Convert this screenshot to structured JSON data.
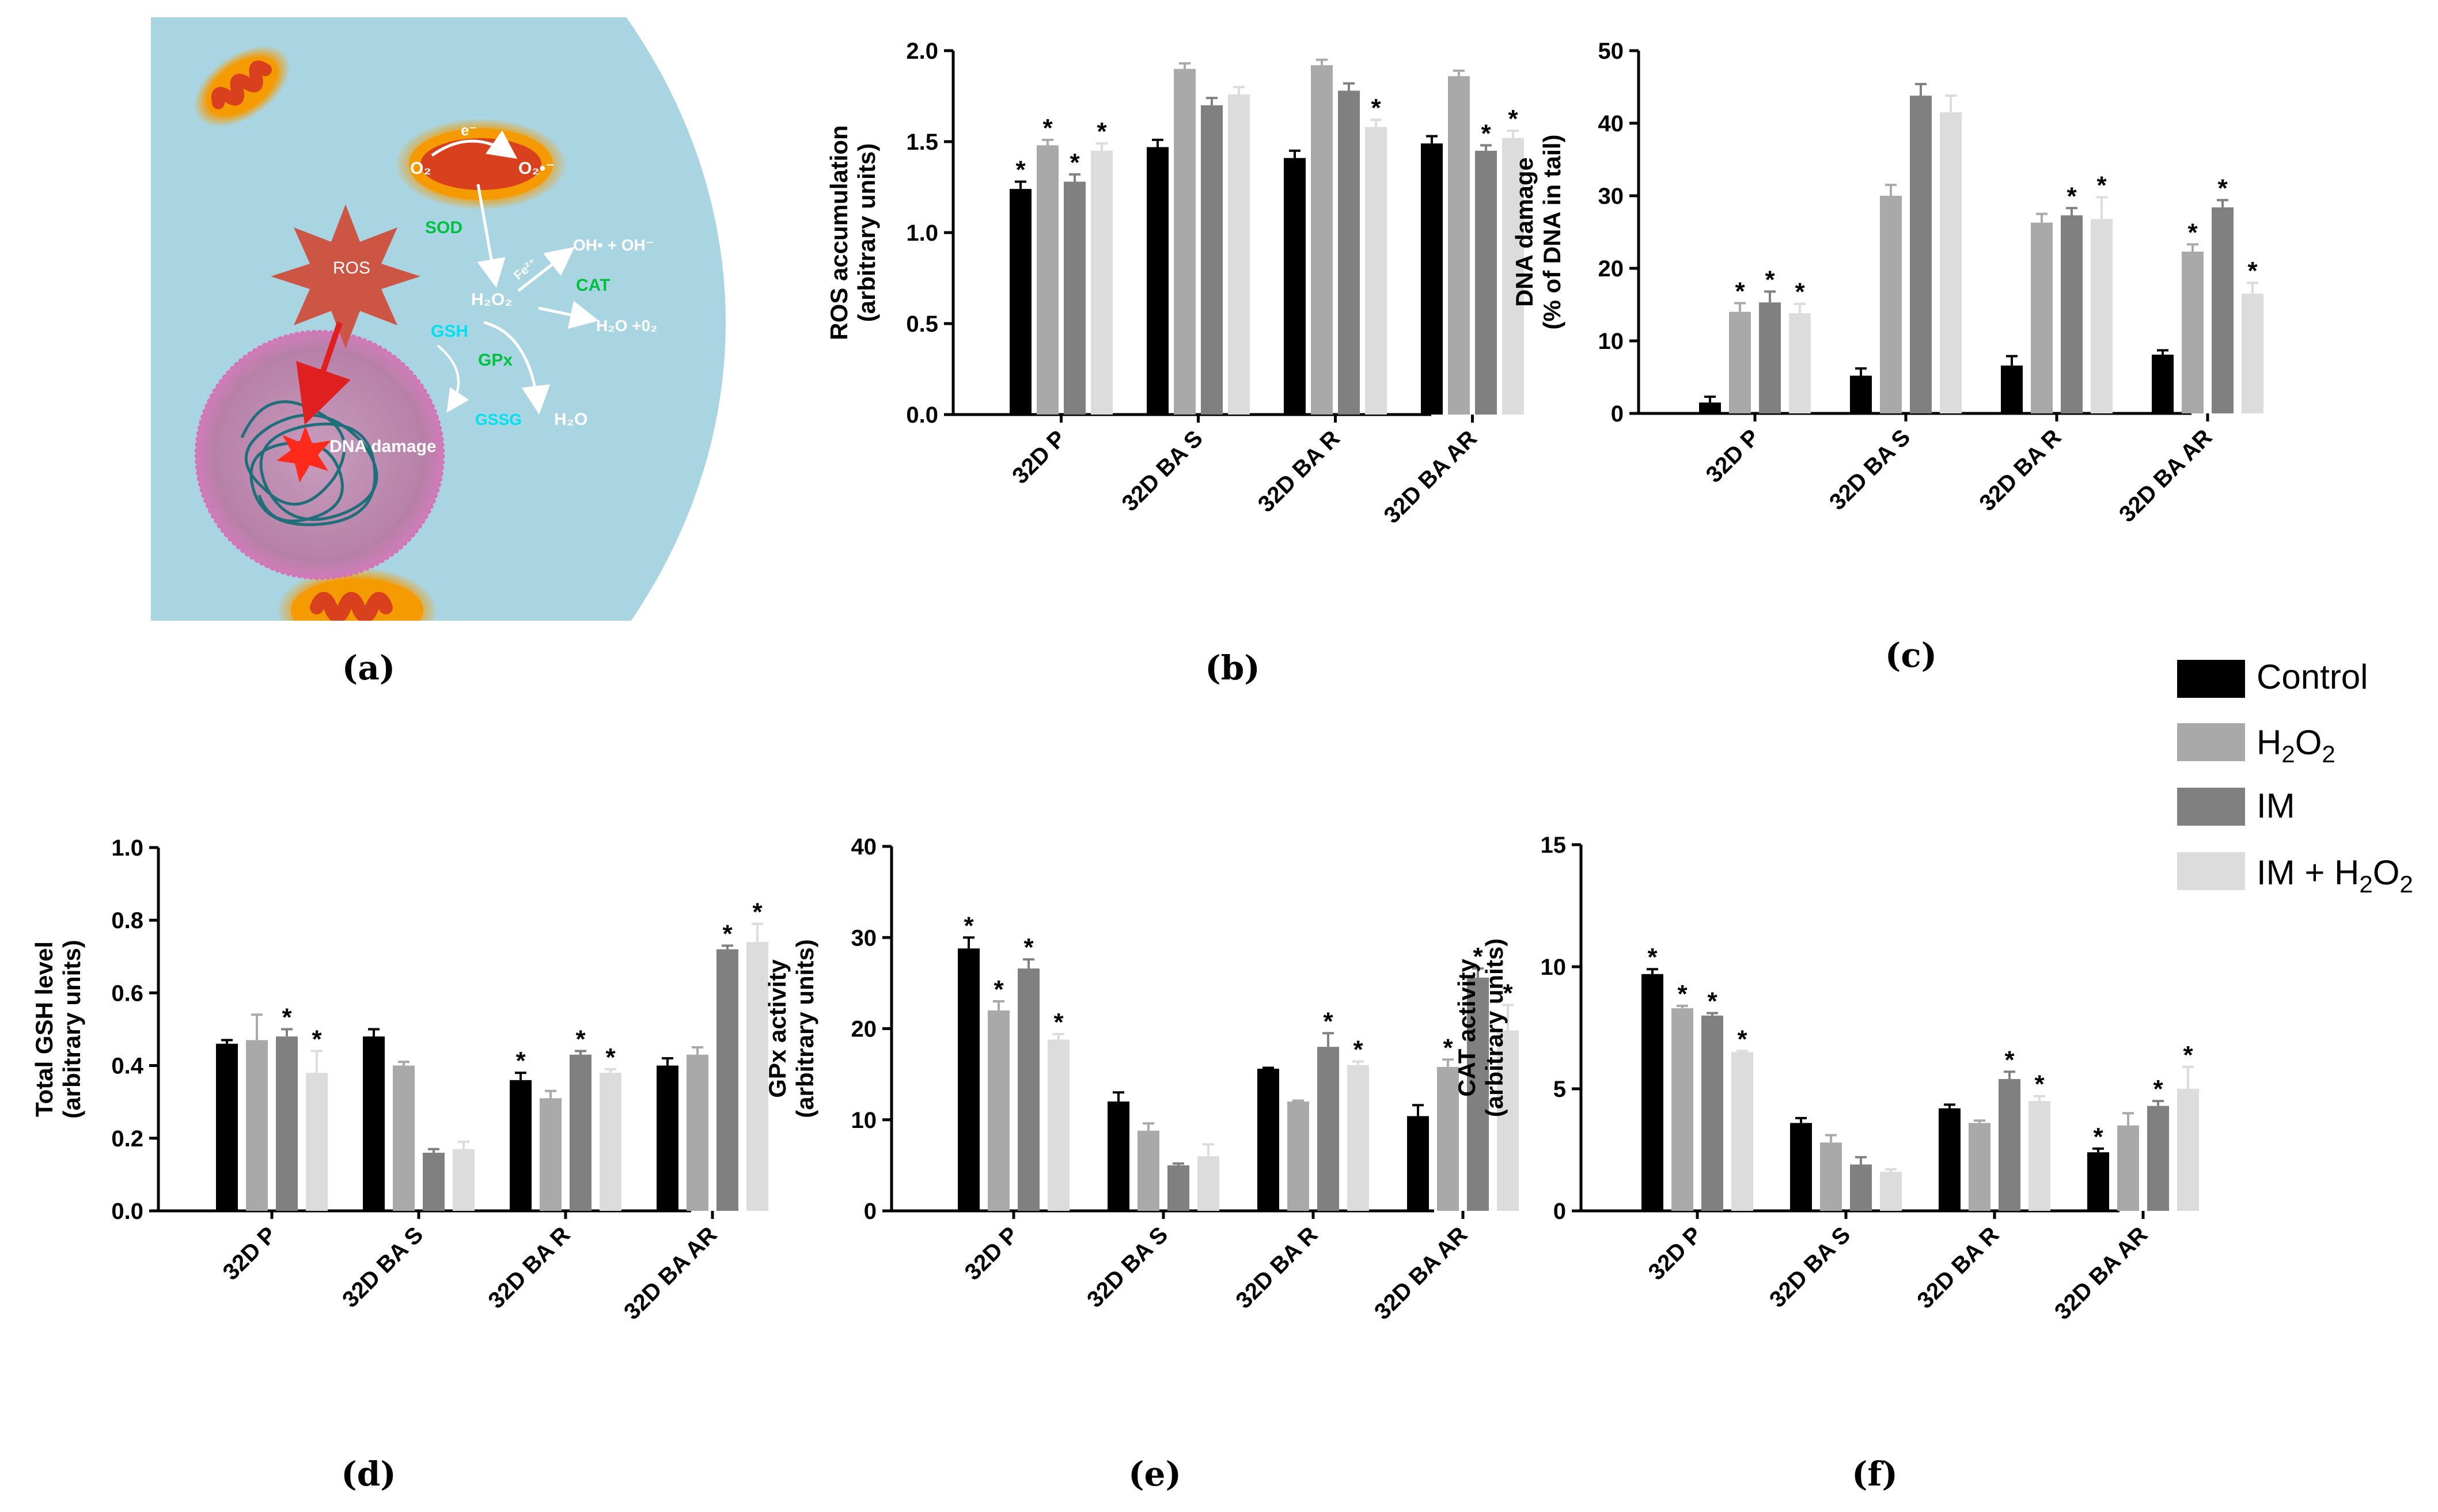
{
  "figure": {
    "panel_labels": [
      "(a)",
      "(b)",
      "(c)",
      "(d)",
      "(e)",
      "(f)"
    ],
    "colors": {
      "control": "#000000",
      "h2o2": "#a9a9a9",
      "im": "#808080",
      "im_h2o2": "#dcdcdc",
      "cell_bg": "#a9d5e2",
      "nucleus": "#c08bb0",
      "ros": "#cc5544",
      "mito_outer": "#f5a000",
      "mito_inner": "#d9411e",
      "dna": "#1f6f7a",
      "green_text": "#00c040",
      "cyan_text": "#00e0f0"
    }
  },
  "diagram": {
    "ros_label": "ROS",
    "dna_damage_label": "DNA damage",
    "electron_label": "e⁻",
    "o2_label": "O₂",
    "superoxide_label": "O₂•⁻",
    "sod_label": "SOD",
    "fe_label": "Fe²⁺",
    "hydroxyl_label": "OH• + OH⁻",
    "h2o2_label": "H₂O₂",
    "cat_label": "CAT",
    "cat_product_label": "H₂O +0₂",
    "gsh_label": "GSH",
    "gpx_label": "GPx",
    "gssg_label": "GSSG",
    "h2o_label": "H₂O"
  },
  "legend": {
    "entries": [
      "Control",
      "H2O2",
      "IM",
      "IM + H2O2"
    ],
    "entries_display": {
      "control": "Control",
      "h2o2_base": "H",
      "h2o2_sub1": "2",
      "h2o2_mid": "O",
      "h2o2_sub2": "2",
      "im": "IM",
      "imh2o2_base": "IM + H",
      "imh2o2_sub1": "2",
      "imh2o2_mid": "O",
      "imh2o2_sub2": "2"
    }
  },
  "chart_data": [
    {
      "panel": "(b)",
      "type": "bar",
      "ylabel": "ROS accumulation",
      "ylabel2": "(arbitrary units)",
      "ylim": [
        0,
        2.0
      ],
      "yticks": [
        "0.0",
        "0.5",
        "1.0",
        "1.5",
        "2.0"
      ],
      "ytick_values": [
        0,
        0.5,
        1.0,
        1.5,
        2.0
      ],
      "categories": [
        "32D P",
        "32D BA S",
        "32D BA R",
        "32D BA AR"
      ],
      "series": [
        {
          "name": "Control",
          "values": [
            1.24,
            1.47,
            1.41,
            1.49
          ],
          "errors": [
            0.04,
            0.04,
            0.04,
            0.04
          ],
          "sig": [
            true,
            false,
            false,
            false
          ]
        },
        {
          "name": "H2O2",
          "values": [
            1.48,
            1.9,
            1.92,
            1.86
          ],
          "errors": [
            0.03,
            0.03,
            0.03,
            0.03
          ],
          "sig": [
            true,
            false,
            false,
            false
          ]
        },
        {
          "name": "IM",
          "values": [
            1.28,
            1.7,
            1.78,
            1.45
          ],
          "errors": [
            0.04,
            0.04,
            0.04,
            0.03
          ],
          "sig": [
            true,
            false,
            false,
            true
          ]
        },
        {
          "name": "IM + H2O2",
          "values": [
            1.45,
            1.76,
            1.58,
            1.52
          ],
          "errors": [
            0.04,
            0.04,
            0.04,
            0.04
          ],
          "sig": [
            true,
            false,
            true,
            true
          ]
        }
      ]
    },
    {
      "panel": "(c)",
      "type": "bar",
      "ylabel": "DNA damage",
      "ylabel2": "(% of DNA in tail)",
      "ylim": [
        0,
        50
      ],
      "yticks": [
        "0",
        "10",
        "20",
        "30",
        "40",
        "50"
      ],
      "ytick_values": [
        0,
        10,
        20,
        30,
        40,
        50
      ],
      "categories": [
        "32D P",
        "32D BA S",
        "32D BA R",
        "32D BA AR"
      ],
      "series": [
        {
          "name": "Control",
          "values": [
            1.5,
            5.2,
            6.6,
            8.1
          ],
          "errors": [
            0.8,
            1.0,
            1.3,
            0.6
          ],
          "sig": [
            false,
            false,
            false,
            false
          ]
        },
        {
          "name": "H2O2",
          "values": [
            14.0,
            30.0,
            26.3,
            22.3
          ],
          "errors": [
            1.2,
            1.5,
            1.2,
            1.0
          ],
          "sig": [
            true,
            false,
            false,
            true
          ]
        },
        {
          "name": "IM",
          "values": [
            15.3,
            43.8,
            27.3,
            28.4
          ],
          "errors": [
            1.5,
            1.6,
            1.0,
            1.0
          ],
          "sig": [
            true,
            false,
            true,
            true
          ]
        },
        {
          "name": "IM + H2O2",
          "values": [
            13.8,
            41.5,
            26.8,
            16.5
          ],
          "errors": [
            1.3,
            2.3,
            3.0,
            1.5
          ],
          "sig": [
            true,
            false,
            true,
            true
          ]
        }
      ]
    },
    {
      "panel": "(d)",
      "type": "bar",
      "ylabel": "Total GSH level",
      "ylabel2": "(arbitrary units)",
      "ylim": [
        0,
        1.0
      ],
      "yticks": [
        "0.0",
        "0.2",
        "0.4",
        "0.6",
        "0.8",
        "1.0"
      ],
      "ytick_values": [
        0,
        0.2,
        0.4,
        0.6,
        0.8,
        1.0
      ],
      "categories": [
        "32D P",
        "32D BA S",
        "32D BA R",
        "32D BA AR"
      ],
      "series": [
        {
          "name": "Control",
          "values": [
            0.46,
            0.48,
            0.36,
            0.4
          ],
          "errors": [
            0.01,
            0.02,
            0.02,
            0.02
          ],
          "sig": [
            false,
            false,
            true,
            false
          ]
        },
        {
          "name": "H2O2",
          "values": [
            0.47,
            0.4,
            0.31,
            0.43
          ],
          "errors": [
            0.07,
            0.01,
            0.02,
            0.02
          ],
          "sig": [
            false,
            false,
            false,
            false
          ]
        },
        {
          "name": "IM",
          "values": [
            0.48,
            0.16,
            0.43,
            0.72
          ],
          "errors": [
            0.02,
            0.01,
            0.01,
            0.01
          ],
          "sig": [
            true,
            false,
            true,
            true
          ]
        },
        {
          "name": "IM + H2O2",
          "values": [
            0.38,
            0.17,
            0.38,
            0.74
          ],
          "errors": [
            0.06,
            0.02,
            0.01,
            0.05
          ],
          "sig": [
            true,
            false,
            true,
            true
          ]
        }
      ]
    },
    {
      "panel": "(e)",
      "type": "bar",
      "ylabel": "GPx activity",
      "ylabel2": "(arbitrary units)",
      "ylim": [
        0,
        40
      ],
      "yticks": [
        "0",
        "10",
        "20",
        "30",
        "40"
      ],
      "ytick_values": [
        0,
        10,
        20,
        30,
        40
      ],
      "categories": [
        "32D P",
        "32D BA S",
        "32D BA R",
        "32D BA AR"
      ],
      "series": [
        {
          "name": "Control",
          "values": [
            28.8,
            12.0,
            15.6,
            10.4
          ],
          "errors": [
            1.2,
            1.0,
            0.1,
            1.2
          ],
          "sig": [
            true,
            false,
            false,
            false
          ]
        },
        {
          "name": "H2O2",
          "values": [
            22.0,
            8.8,
            12.0,
            15.8
          ],
          "errors": [
            1.0,
            0.8,
            0.1,
            0.8
          ],
          "sig": [
            true,
            false,
            false,
            true
          ]
        },
        {
          "name": "IM",
          "values": [
            26.6,
            5.0,
            18.0,
            25.6
          ],
          "errors": [
            1.0,
            0.2,
            1.5,
            1.0
          ],
          "sig": [
            true,
            false,
            true,
            true
          ]
        },
        {
          "name": "IM + H2O2",
          "values": [
            18.8,
            6.0,
            16.0,
            19.8
          ],
          "errors": [
            0.6,
            1.3,
            0.4,
            2.8
          ],
          "sig": [
            true,
            false,
            true,
            true
          ]
        }
      ]
    },
    {
      "panel": "(f)",
      "type": "bar",
      "ylabel": "CAT activity",
      "ylabel2": "(arbitrary units)",
      "ylim": [
        0,
        15
      ],
      "yticks": [
        "0",
        "5",
        "10",
        "15"
      ],
      "ytick_values": [
        0,
        5,
        10,
        15
      ],
      "categories": [
        "32D P",
        "32D BA S",
        "32D BA R",
        "32D BA AR"
      ],
      "series": [
        {
          "name": "Control",
          "values": [
            9.7,
            3.6,
            4.2,
            2.4
          ],
          "errors": [
            0.2,
            0.2,
            0.15,
            0.15
          ],
          "sig": [
            true,
            false,
            false,
            true
          ]
        },
        {
          "name": "H2O2",
          "values": [
            8.3,
            2.8,
            3.6,
            3.5
          ],
          "errors": [
            0.1,
            0.3,
            0.1,
            0.5
          ],
          "sig": [
            true,
            false,
            false,
            false
          ]
        },
        {
          "name": "IM",
          "values": [
            8.0,
            1.9,
            5.4,
            4.3
          ],
          "errors": [
            0.1,
            0.3,
            0.3,
            0.2
          ],
          "sig": [
            true,
            false,
            true,
            true
          ]
        },
        {
          "name": "IM + H2O2",
          "values": [
            6.5,
            1.6,
            4.5,
            5.0
          ],
          "errors": [
            0.05,
            0.1,
            0.2,
            0.9
          ],
          "sig": [
            true,
            false,
            true,
            true
          ]
        }
      ]
    }
  ]
}
